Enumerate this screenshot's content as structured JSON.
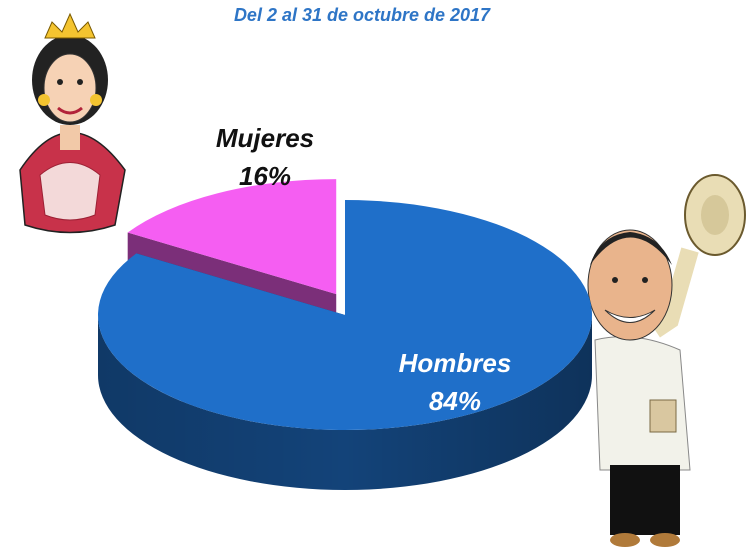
{
  "chart_data": {
    "type": "pie",
    "subtitle": "Del 2 al 31 de octubre de 2017",
    "categories": [
      "Hombres",
      "Mujeres"
    ],
    "values": [
      84,
      16
    ],
    "value_labels": [
      "84%",
      "16%"
    ],
    "colors": [
      "#1f6fc9",
      "#f55ef2"
    ]
  }
}
